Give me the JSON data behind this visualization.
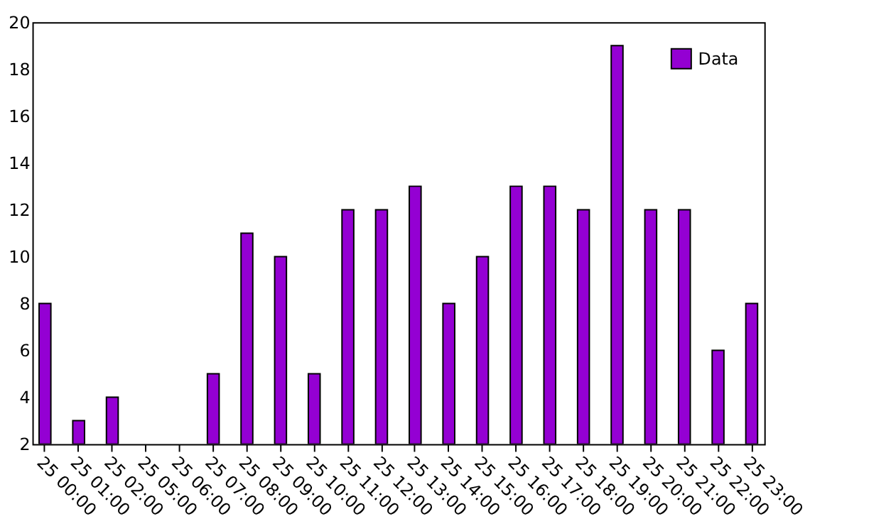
{
  "chart_data": {
    "type": "bar",
    "categories": [
      "25 00:00",
      "25 01:00",
      "25 02:00",
      "25 05:00",
      "25 06:00",
      "25 07:00",
      "25 08:00",
      "25 09:00",
      "25 10:00",
      "25 11:00",
      "25 12:00",
      "25 13:00",
      "25 14:00",
      "25 15:00",
      "25 16:00",
      "25 17:00",
      "25 18:00",
      "25 19:00",
      "25 20:00",
      "25 21:00",
      "25 22:00",
      "25 23:00"
    ],
    "series": [
      {
        "name": "Data",
        "color": "#9400d3",
        "values": [
          8,
          3,
          4,
          null,
          null,
          5,
          11,
          10,
          5,
          12,
          12,
          13,
          8,
          10,
          13,
          13,
          12,
          19,
          12,
          12,
          6,
          8
        ]
      }
    ],
    "ylim": [
      2,
      20
    ],
    "yticks": [
      2,
      4,
      6,
      8,
      10,
      12,
      14,
      16,
      18,
      20
    ],
    "grid": false,
    "legend": "top right"
  }
}
